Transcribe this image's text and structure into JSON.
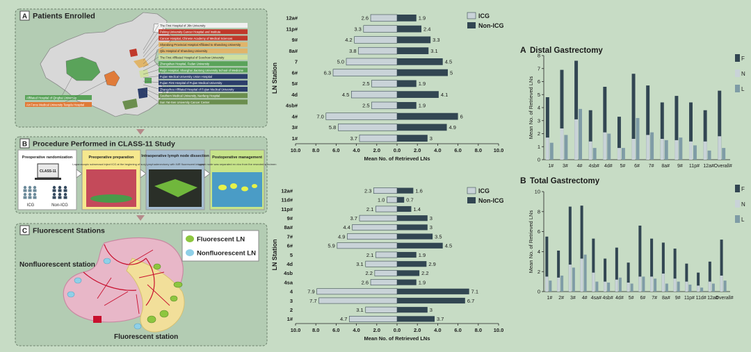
{
  "panel_a": {
    "label": "A",
    "title": "Patients Enrolled",
    "hospitals": [
      {
        "name": "The First Hospital of Jilin University",
        "color": "#f0f0f0"
      },
      {
        "name": "Peking University Cancer Hospital and Institute",
        "color": "#c0392b"
      },
      {
        "name": "Cancer Hospital, Chinese Academy of Medical Sciences",
        "color": "#c0392b"
      },
      {
        "name": "Shandong Provincial Hospital Affiliated to Shandong University",
        "color": "#e0b56a"
      },
      {
        "name": "Qilu Hospital of Shandong University",
        "color": "#e0b56a"
      },
      {
        "name": "The First Affiliated Hospital of Soochow University",
        "color": "#cfe0a0"
      },
      {
        "name": "Zhongshan Hospital, Fudan University",
        "color": "#5aa35a"
      },
      {
        "name": "Ruijin Hospital, Shanghai Jiaotong University School of Medicine",
        "color": "#5aa35a"
      },
      {
        "name": "Fujian Medical University Union Hospital",
        "color": "#2c3e6b"
      },
      {
        "name": "Fujian First Hospital of Fujian Medical University",
        "color": "#2c3e6b"
      },
      {
        "name": "Zhangzhou Affiliated Hospital of Fujian Medical University",
        "color": "#2c3e6b"
      },
      {
        "name": "Southern Medical University, Nanfang Hospital",
        "color": "#6b8e4e"
      },
      {
        "name": "Sun Yat-Sen University Cancer Center",
        "color": "#6b8e4e"
      }
    ],
    "left_hospitals": [
      {
        "name": "Affiliated Hospital of Qinghai University",
        "color": "#5aa35a"
      },
      {
        "name": "Air Force Medical University Tangdu Hospital",
        "color": "#e07b39"
      }
    ]
  },
  "panel_b": {
    "label": "B",
    "title": "Procedure Performed in CLASS-11 Study",
    "steps": [
      {
        "title": "Preoperative randomization",
        "sub": ""
      },
      {
        "title": "Preoperative preparation",
        "sub": "Laparoscopic subserosal inject ICG at the beginning of surgery"
      },
      {
        "title": "Intraoperative lymph node dissection",
        "sub": "Lymphadenectomy with NIR fluorescent images"
      },
      {
        "title": "Postoperative management",
        "sub": "Lymph node was separated ex vivo from the resected specimen"
      }
    ],
    "screen_label": "CLASS-11",
    "group_icg": "ICG",
    "group_non": "Non-ICG"
  },
  "panel_c": {
    "label": "C",
    "title": "Fluorescent Stations",
    "legend_fluor": "Fluorescent LN",
    "legend_nonfluor": "Nonfluorescent LN",
    "label_nonfluor": "Nonfluorescent station",
    "label_fluor": "Fluorescent station"
  },
  "chart_data": [
    {
      "type": "bar",
      "orientation": "horizontal-butterfly",
      "ylabel": "LN Station",
      "xlabel": "Mean No. of Retrieved LNs",
      "xlim": [
        -10,
        10
      ],
      "xticks": [
        "10.0",
        "8.0",
        "6.0",
        "4.0",
        "2.0",
        "0.0",
        "2.0",
        "4.0",
        "6.0",
        "8.0",
        "10.0"
      ],
      "legend": [
        "ICG",
        "Non-ICG"
      ],
      "categories": [
        "12a#",
        "11p#",
        "9#",
        "8a#",
        "7",
        "6#",
        "5#",
        "4d",
        "4sb#",
        "4#",
        "3#",
        "1#"
      ],
      "series": [
        {
          "name": "ICG",
          "values": [
            2.6,
            3.3,
            4.2,
            3.8,
            5.0,
            6.3,
            2.5,
            4.5,
            2.5,
            7.0,
            5.8,
            3.7
          ],
          "labels": [
            "2.6",
            "3.3",
            "4.2",
            "3.8",
            "5.0",
            "6.3",
            "2.5",
            "4.5",
            "2.5",
            "7.0",
            "5.8",
            "3.7"
          ]
        },
        {
          "name": "Non-ICG",
          "values": [
            1.9,
            2.4,
            3.3,
            3.1,
            4.5,
            5.0,
            1.9,
            4.1,
            1.9,
            6.0,
            4.9,
            3.0
          ],
          "labels": [
            "1.9",
            "2.4",
            "3.3",
            "3.1",
            "4.5",
            "5",
            "1.9",
            "4.1",
            "1.9",
            "6",
            "4.9",
            "3"
          ]
        }
      ]
    },
    {
      "type": "bar",
      "orientation": "horizontal-butterfly",
      "ylabel": "LN Station",
      "xlabel": "Mean No. of Retrieved LNs",
      "xlim": [
        -10,
        10
      ],
      "xticks": [
        "10.0",
        "8.0",
        "6.0",
        "4.0",
        "2.0",
        "0.0",
        "2.0",
        "4.0",
        "6.0",
        "8.0",
        "10.0"
      ],
      "legend": [
        "ICG",
        "Non-ICG"
      ],
      "categories": [
        "12a#",
        "11d#",
        "11p#",
        "9#",
        "8a#",
        "7#",
        "6#",
        "5",
        "4d",
        "4sb",
        "4sa",
        "4",
        "3",
        "2",
        "1#"
      ],
      "series": [
        {
          "name": "ICG",
          "values": [
            2.3,
            1.0,
            2.1,
            3.7,
            4.4,
            4.9,
            5.9,
            2.1,
            3.1,
            2.2,
            2.6,
            7.9,
            7.7,
            3.1,
            4.7
          ],
          "labels": [
            "2.3",
            "1.0",
            "2.1",
            "3.7",
            "4.4",
            "4.9",
            "5.9",
            "2.1",
            "3.1",
            "2.2",
            "2.6",
            "7.9",
            "7.7",
            "3.1",
            "4.7"
          ]
        },
        {
          "name": "Non-ICG",
          "values": [
            1.6,
            0.7,
            1.4,
            3.0,
            3.0,
            3.5,
            4.5,
            1.9,
            2.9,
            2.2,
            1.9,
            7.1,
            6.7,
            3.0,
            3.7
          ],
          "labels": [
            "1.6",
            "0.7",
            "1.4",
            "3",
            "3",
            "3.5",
            "4.5",
            "1.9",
            "2.9",
            "2.2",
            "1.9",
            "7.1",
            "6.7",
            "3",
            "3.7"
          ]
        }
      ]
    },
    {
      "type": "bar",
      "panel": "A",
      "title": "Distal Gastrectomy",
      "ylabel": "Mean No. of Retrieved LNs",
      "ylim": [
        0,
        8
      ],
      "yticks": [
        "0",
        "1",
        "2",
        "3",
        "4",
        "5",
        "6",
        "7",
        "8"
      ],
      "categories": [
        "1#",
        "3#",
        "4#",
        "4sb#",
        "4d#",
        "5#",
        "6#",
        "7#",
        "8a#",
        "9#",
        "11p#",
        "12a#",
        "Overall#"
      ],
      "legend": [
        "F",
        "N",
        "L"
      ],
      "series": [
        {
          "name": "F",
          "values": [
            4.8,
            6.9,
            7.6,
            3.8,
            5.6,
            3.3,
            6.6,
            5.7,
            4.4,
            4.9,
            4.4,
            3.8,
            5.3
          ]
        },
        {
          "name": "N",
          "values": [
            1.7,
            2.4,
            3.1,
            1.4,
            2.1,
            0.9,
            1.6,
            1.9,
            1.6,
            1.5,
            1.4,
            1.4,
            1.8
          ]
        },
        {
          "name": "L",
          "values": [
            1.3,
            1.9,
            3.9,
            0.9,
            2.0,
            0.9,
            3.2,
            2.1,
            1.5,
            1.7,
            1.1,
            0.7,
            0.9
          ]
        }
      ]
    },
    {
      "type": "bar",
      "panel": "B",
      "title": "Total Gastrectomy",
      "ylabel": "Mean No. of Retrieved LNs",
      "ylim": [
        0,
        10
      ],
      "yticks": [
        "0",
        "2",
        "4",
        "6",
        "8",
        "10"
      ],
      "categories": [
        "1#",
        "2#",
        "3#",
        "4#",
        "4sa#",
        "4sb#",
        "4d#",
        "5#",
        "6#",
        "7#",
        "8a#",
        "9#",
        "11p#",
        "11d#",
        "12a#",
        "Overall#"
      ],
      "legend": [
        "F",
        "N",
        "L"
      ],
      "series": [
        {
          "name": "F",
          "values": [
            5.5,
            4.1,
            8.5,
            8.6,
            5.3,
            3.3,
            4.4,
            2.9,
            6.6,
            5.3,
            4.9,
            4.3,
            2.8,
            1.9,
            3.0,
            5.2
          ]
        },
        {
          "name": "N",
          "values": [
            1.5,
            1.4,
            2.7,
            3.3,
            1.9,
            1.0,
            1.2,
            0.9,
            1.5,
            1.5,
            1.8,
            1.3,
            1.0,
            0.6,
            1.0,
            1.6
          ]
        },
        {
          "name": "L",
          "values": [
            1.1,
            1.6,
            2.4,
            3.7,
            1.0,
            0.9,
            1.4,
            0.8,
            1.5,
            1.3,
            0.8,
            1.0,
            0.7,
            0.4,
            0.8,
            1.1
          ]
        }
      ]
    }
  ],
  "colors": {
    "icg": "#c9d3d8",
    "nonicg": "#324652",
    "f": "#324652",
    "n": "#c9d3d8",
    "l": "#7f9ca6",
    "background": "#c7dcc5"
  }
}
